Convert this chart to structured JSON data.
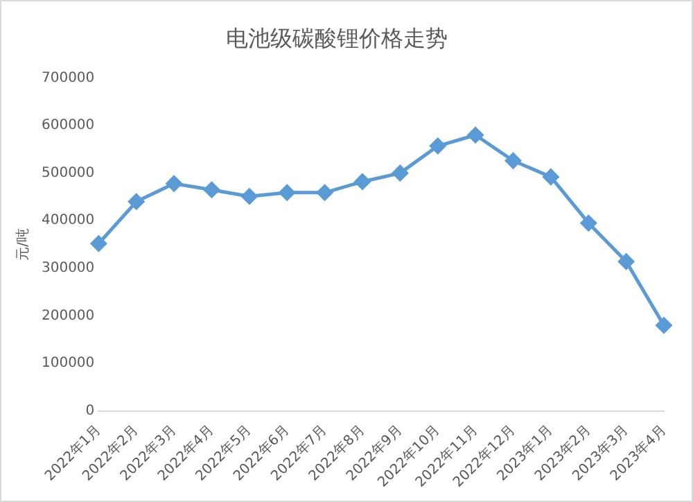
{
  "chart_data": {
    "type": "line",
    "title": "电池级碳酸锂价格走势",
    "ylabel": "元/吨",
    "categories": [
      "2022年1月",
      "2022年2月",
      "2022年3月",
      "2022年4月",
      "2022年5月",
      "2022年6月",
      "2022年7月",
      "2022年8月",
      "2022年9月",
      "2022年10月",
      "2022年11月",
      "2022年12月",
      "2023年1月",
      "2023年2月",
      "2023年3月",
      "2023年4月"
    ],
    "series": [
      {
        "color": "#5b9bd5",
        "values": [
          352000,
          440000,
          478000,
          465000,
          451000,
          459000,
          459000,
          482000,
          500000,
          557000,
          580000,
          526000,
          492000,
          395000,
          314000,
          180000
        ]
      }
    ],
    "ylim": [
      0,
      700000
    ],
    "yticks": [
      0,
      100000,
      200000,
      300000,
      400000,
      500000,
      600000,
      700000
    ],
    "grid": false,
    "legend": false,
    "marker": "diamond",
    "line_style": "solid"
  }
}
